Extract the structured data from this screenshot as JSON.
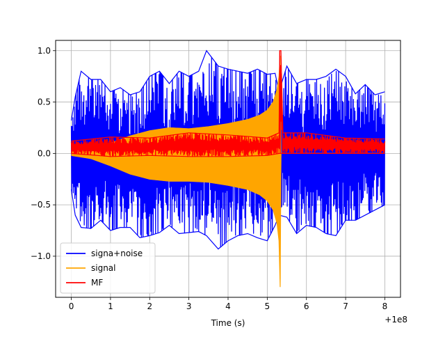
{
  "chart_data": {
    "type": "line",
    "title": "",
    "xlabel": "Time (s)",
    "ylabel": "",
    "x_offset_label": "+1e8",
    "xlim": [
      -0.4,
      8.4
    ],
    "ylim": [
      -1.4,
      1.1
    ],
    "x_ticks": [
      0,
      1,
      2,
      3,
      4,
      5,
      6,
      7,
      8
    ],
    "x_tick_labels": [
      "0",
      "1",
      "2",
      "3",
      "4",
      "5",
      "6",
      "7",
      "8"
    ],
    "y_ticks": [
      1.0,
      0.5,
      0.0,
      -0.5,
      -1.0
    ],
    "y_tick_labels": [
      "1.0",
      "0.5",
      "0.0",
      "−0.5",
      "−1.0"
    ],
    "grid": true,
    "legend_position": "lower-left",
    "series": [
      {
        "name": "signa+noise",
        "color": "#0000ff",
        "x": [
          0,
          0.1,
          0.25,
          0.5,
          0.75,
          1.0,
          1.25,
          1.5,
          1.75,
          2.0,
          2.25,
          2.5,
          2.75,
          3.0,
          3.25,
          3.45,
          3.75,
          4.0,
          4.25,
          4.5,
          4.75,
          5.0,
          5.2,
          5.3,
          5.5,
          5.75,
          6.0,
          6.25,
          6.5,
          6.75,
          7.0,
          7.25,
          7.5,
          7.75,
          8.0
        ],
        "upper": [
          0.32,
          0.55,
          0.8,
          0.72,
          0.72,
          0.6,
          0.64,
          0.57,
          0.6,
          0.75,
          0.8,
          0.68,
          0.8,
          0.75,
          0.8,
          1.0,
          0.85,
          0.82,
          0.8,
          0.78,
          0.82,
          0.77,
          0.78,
          0.6,
          0.85,
          0.68,
          0.72,
          0.72,
          0.75,
          0.82,
          0.75,
          0.58,
          0.67,
          0.57,
          0.6
        ],
        "lower": [
          -0.35,
          -0.6,
          -0.72,
          -0.73,
          -0.65,
          -0.75,
          -0.72,
          -0.72,
          -0.82,
          -0.8,
          -0.77,
          -0.7,
          -0.78,
          -0.77,
          -0.76,
          -0.8,
          -0.93,
          -0.85,
          -0.8,
          -0.78,
          -0.82,
          -0.85,
          -0.7,
          -0.6,
          -0.62,
          -0.78,
          -0.7,
          -0.72,
          -0.78,
          -0.8,
          -0.65,
          -0.65,
          -0.6,
          -0.55,
          -0.5
        ]
      },
      {
        "name": "signal",
        "color": "#ffa500",
        "x": [
          0,
          0.5,
          1.0,
          1.5,
          2.0,
          2.5,
          3.0,
          3.5,
          4.0,
          4.5,
          4.8,
          5.0,
          5.15,
          5.25,
          5.3,
          5.33,
          5.35,
          5.5,
          8.0
        ],
        "upper": [
          0.02,
          0.05,
          0.1,
          0.17,
          0.22,
          0.25,
          0.24,
          0.26,
          0.29,
          0.33,
          0.37,
          0.42,
          0.5,
          0.62,
          0.75,
          0.95,
          0.0,
          0.0,
          0.0
        ],
        "lower": [
          -0.02,
          -0.05,
          -0.12,
          -0.2,
          -0.25,
          -0.27,
          -0.27,
          -0.28,
          -0.31,
          -0.35,
          -0.4,
          -0.46,
          -0.55,
          -0.68,
          -0.85,
          -1.3,
          0.0,
          0.0,
          0.0
        ]
      },
      {
        "name": "MF",
        "color": "#ff0000",
        "x": [
          0,
          1.0,
          2.0,
          3.0,
          4.0,
          5.0,
          5.3,
          5.32,
          5.35,
          5.4,
          6.0,
          7.0,
          8.0
        ],
        "upper": [
          0.12,
          0.16,
          0.15,
          0.2,
          0.18,
          0.15,
          0.2,
          1.0,
          1.0,
          0.2,
          0.2,
          0.15,
          0.14
        ],
        "lower": [
          0.0,
          -0.03,
          -0.02,
          -0.03,
          -0.03,
          -0.02,
          0.0,
          0.0,
          0.0,
          0.0,
          0.0,
          0.0,
          0.0
        ]
      }
    ]
  }
}
